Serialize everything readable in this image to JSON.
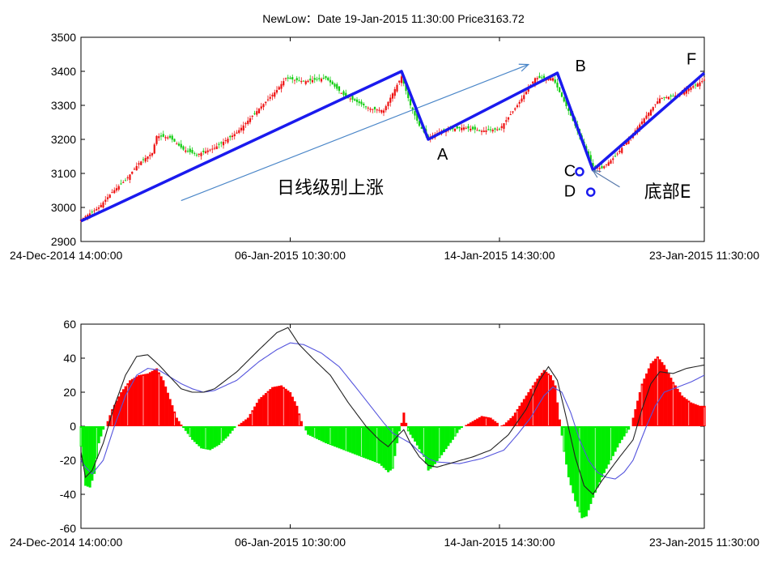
{
  "title": "NewLow：Date 19-Jan-2015 11:30:00 Price3163.72",
  "chart_data": [
    {
      "type": "candlestick",
      "yticks": [
        2900,
        3000,
        3100,
        3200,
        3300,
        3400,
        3500
      ],
      "ylim": [
        2900,
        3500
      ],
      "xlim": [
        0,
        280
      ],
      "xticks": [
        {
          "x": 0,
          "label": "24-Dec-2014 14:00:00"
        },
        {
          "x": 94,
          "label": "06-Jan-2015 10:30:00"
        },
        {
          "x": 188,
          "label": "14-Jan-2015 14:30:00"
        },
        {
          "x": 280,
          "label": "23-Jan-2015 11:30:00"
        }
      ],
      "price_anchors": [
        [
          0,
          2965
        ],
        [
          8,
          3000
        ],
        [
          14,
          3045
        ],
        [
          20,
          3080
        ],
        [
          26,
          3130
        ],
        [
          32,
          3160
        ],
        [
          34,
          3210
        ],
        [
          40,
          3205
        ],
        [
          46,
          3170
        ],
        [
          52,
          3155
        ],
        [
          60,
          3175
        ],
        [
          70,
          3220
        ],
        [
          80,
          3290
        ],
        [
          88,
          3345
        ],
        [
          92,
          3380
        ],
        [
          100,
          3370
        ],
        [
          110,
          3380
        ],
        [
          118,
          3330
        ],
        [
          124,
          3310
        ],
        [
          130,
          3290
        ],
        [
          136,
          3285
        ],
        [
          144,
          3385
        ],
        [
          148,
          3300
        ],
        [
          152,
          3240
        ],
        [
          156,
          3205
        ],
        [
          162,
          3225
        ],
        [
          172,
          3235
        ],
        [
          180,
          3225
        ],
        [
          188,
          3230
        ],
        [
          196,
          3300
        ],
        [
          204,
          3380
        ],
        [
          212,
          3380
        ],
        [
          220,
          3270
        ],
        [
          226,
          3180
        ],
        [
          230,
          3120
        ],
        [
          234,
          3115
        ],
        [
          240,
          3150
        ],
        [
          246,
          3200
        ],
        [
          254,
          3270
        ],
        [
          260,
          3320
        ],
        [
          268,
          3330
        ],
        [
          276,
          3360
        ],
        [
          280,
          3375
        ]
      ],
      "bi_lines": [
        [
          0,
          2960
        ],
        [
          144,
          3400
        ],
        [
          156,
          3200
        ],
        [
          214,
          3395
        ],
        [
          230,
          3110
        ],
        [
          280,
          3395
        ]
      ],
      "trend_arrow": [
        [
          45,
          3020
        ],
        [
          201,
          3420
        ]
      ],
      "bottom_arrow": [
        [
          242,
          3060
        ],
        [
          230,
          3108
        ]
      ],
      "labels": [
        {
          "text": "A",
          "x": 160,
          "y": 3140
        },
        {
          "text": "B",
          "x": 222,
          "y": 3400
        },
        {
          "text": "C",
          "x": 217,
          "y": 3092
        },
        {
          "text": "D",
          "x": 217,
          "y": 3032
        },
        {
          "text": "F",
          "x": 272,
          "y": 3420
        },
        {
          "text": "底部E",
          "x": 253,
          "y": 3028
        },
        {
          "text": "日线级别上涨",
          "x": 88,
          "y": 3040
        }
      ],
      "markers": [
        {
          "name": "C",
          "x": 224,
          "y": 3105
        },
        {
          "name": "D",
          "x": 229,
          "y": 3045
        }
      ]
    },
    {
      "type": "macd",
      "yticks": [
        -60,
        -40,
        -20,
        0,
        20,
        40,
        60
      ],
      "ylim": [
        -60,
        60
      ],
      "xlim": [
        0,
        280
      ],
      "xticks": [
        {
          "x": 0,
          "label": "24-Dec-2014 14:00:00"
        },
        {
          "x": 94,
          "label": "06-Jan-2015 10:30:00"
        },
        {
          "x": 188,
          "label": "14-Jan-2015 14:30:00"
        },
        {
          "x": 280,
          "label": "23-Jan-2015 11:30:00"
        }
      ],
      "hist_anchors": [
        [
          0,
          -12
        ],
        [
          2,
          -35
        ],
        [
          4,
          -36
        ],
        [
          6,
          -28
        ],
        [
          8,
          -10
        ],
        [
          10,
          -2
        ],
        [
          11,
          0
        ],
        [
          12,
          3
        ],
        [
          14,
          10
        ],
        [
          18,
          20
        ],
        [
          22,
          27
        ],
        [
          26,
          30
        ],
        [
          30,
          31
        ],
        [
          34,
          34
        ],
        [
          37,
          27
        ],
        [
          40,
          16
        ],
        [
          43,
          5
        ],
        [
          45,
          1
        ],
        [
          46,
          -1
        ],
        [
          50,
          -8
        ],
        [
          54,
          -13
        ],
        [
          58,
          -14
        ],
        [
          62,
          -11
        ],
        [
          66,
          -6
        ],
        [
          69,
          -1
        ],
        [
          70,
          0
        ],
        [
          71,
          1
        ],
        [
          75,
          5
        ],
        [
          80,
          16
        ],
        [
          86,
          23
        ],
        [
          90,
          24
        ],
        [
          94,
          20
        ],
        [
          97,
          12
        ],
        [
          99,
          3
        ],
        [
          100,
          0
        ],
        [
          102,
          -5
        ],
        [
          110,
          -10
        ],
        [
          116,
          -13
        ],
        [
          122,
          -16
        ],
        [
          128,
          -19
        ],
        [
          134,
          -22
        ],
        [
          138,
          -27
        ],
        [
          140,
          -25
        ],
        [
          142,
          -10
        ],
        [
          143,
          -3
        ],
        [
          144,
          2
        ],
        [
          145,
          8
        ],
        [
          146,
          2
        ],
        [
          147,
          -3
        ],
        [
          150,
          -9
        ],
        [
          154,
          -18
        ],
        [
          156,
          -26
        ],
        [
          158,
          -24
        ],
        [
          162,
          -17
        ],
        [
          167,
          -8
        ],
        [
          170,
          -2
        ],
        [
          172,
          0
        ],
        [
          176,
          3
        ],
        [
          180,
          6
        ],
        [
          184,
          5
        ],
        [
          187,
          2
        ],
        [
          188,
          0
        ],
        [
          190,
          1
        ],
        [
          194,
          6
        ],
        [
          200,
          18
        ],
        [
          205,
          28
        ],
        [
          208,
          33
        ],
        [
          211,
          30
        ],
        [
          213,
          24
        ],
        [
          215,
          4
        ],
        [
          217,
          -15
        ],
        [
          219,
          -30
        ],
        [
          222,
          -44
        ],
        [
          225,
          -54
        ],
        [
          227,
          -53
        ],
        [
          230,
          -42
        ],
        [
          234,
          -30
        ],
        [
          238,
          -20
        ],
        [
          242,
          -10
        ],
        [
          246,
          -2
        ],
        [
          247,
          0
        ],
        [
          249,
          10
        ],
        [
          252,
          25
        ],
        [
          256,
          37
        ],
        [
          259,
          41
        ],
        [
          262,
          36
        ],
        [
          266,
          26
        ],
        [
          270,
          18
        ],
        [
          274,
          14
        ],
        [
          278,
          12
        ],
        [
          280,
          12
        ]
      ],
      "dif_anchors": [
        [
          0,
          -15
        ],
        [
          2,
          -30
        ],
        [
          5,
          -26
        ],
        [
          10,
          -10
        ],
        [
          15,
          12
        ],
        [
          20,
          30
        ],
        [
          25,
          41
        ],
        [
          30,
          42
        ],
        [
          35,
          36
        ],
        [
          40,
          29
        ],
        [
          45,
          22
        ],
        [
          50,
          20
        ],
        [
          55,
          20
        ],
        [
          60,
          22
        ],
        [
          70,
          32
        ],
        [
          80,
          45
        ],
        [
          88,
          55
        ],
        [
          93,
          58
        ],
        [
          98,
          48
        ],
        [
          104,
          40
        ],
        [
          112,
          30
        ],
        [
          120,
          14
        ],
        [
          128,
          0
        ],
        [
          134,
          -8
        ],
        [
          138,
          -12
        ],
        [
          142,
          -6
        ],
        [
          145,
          -2
        ],
        [
          148,
          -10
        ],
        [
          152,
          -18
        ],
        [
          156,
          -23
        ],
        [
          160,
          -24
        ],
        [
          168,
          -21
        ],
        [
          176,
          -18
        ],
        [
          184,
          -14
        ],
        [
          192,
          -5
        ],
        [
          200,
          10
        ],
        [
          206,
          27
        ],
        [
          210,
          35
        ],
        [
          214,
          27
        ],
        [
          218,
          5
        ],
        [
          222,
          -18
        ],
        [
          226,
          -35
        ],
        [
          230,
          -40
        ],
        [
          234,
          -32
        ],
        [
          238,
          -25
        ],
        [
          242,
          -18
        ],
        [
          248,
          -8
        ],
        [
          252,
          10
        ],
        [
          256,
          25
        ],
        [
          260,
          32
        ],
        [
          266,
          31
        ],
        [
          272,
          34
        ],
        [
          280,
          36
        ]
      ],
      "dea_anchors": [
        [
          0,
          -20
        ],
        [
          2,
          -24
        ],
        [
          5,
          -28
        ],
        [
          10,
          -20
        ],
        [
          15,
          0
        ],
        [
          20,
          18
        ],
        [
          25,
          30
        ],
        [
          30,
          34
        ],
        [
          35,
          33
        ],
        [
          40,
          29
        ],
        [
          45,
          25
        ],
        [
          50,
          22
        ],
        [
          55,
          20
        ],
        [
          60,
          21
        ],
        [
          70,
          27
        ],
        [
          80,
          38
        ],
        [
          88,
          45
        ],
        [
          94,
          49
        ],
        [
          100,
          48
        ],
        [
          108,
          43
        ],
        [
          116,
          35
        ],
        [
          124,
          22
        ],
        [
          130,
          12
        ],
        [
          136,
          2
        ],
        [
          140,
          -4
        ],
        [
          144,
          -7
        ],
        [
          148,
          -10
        ],
        [
          152,
          -15
        ],
        [
          156,
          -19
        ],
        [
          160,
          -21
        ],
        [
          170,
          -22
        ],
        [
          180,
          -19
        ],
        [
          190,
          -14
        ],
        [
          196,
          -5
        ],
        [
          202,
          5
        ],
        [
          208,
          18
        ],
        [
          212,
          23
        ],
        [
          216,
          20
        ],
        [
          220,
          8
        ],
        [
          224,
          -8
        ],
        [
          228,
          -20
        ],
        [
          232,
          -27
        ],
        [
          236,
          -30
        ],
        [
          240,
          -31
        ],
        [
          244,
          -27
        ],
        [
          248,
          -20
        ],
        [
          254,
          0
        ],
        [
          258,
          12
        ],
        [
          262,
          20
        ],
        [
          268,
          23
        ],
        [
          274,
          26
        ],
        [
          280,
          30
        ]
      ]
    }
  ]
}
